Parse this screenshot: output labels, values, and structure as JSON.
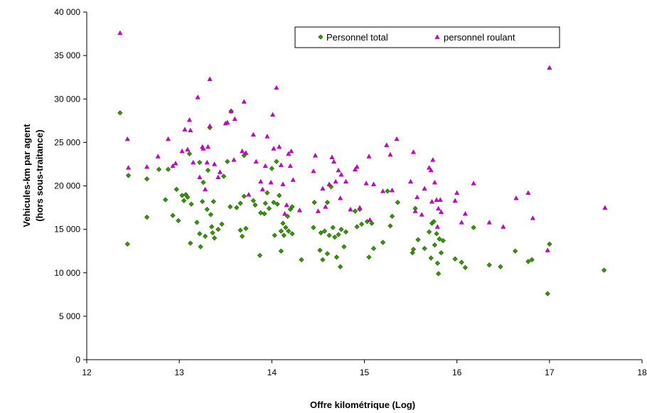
{
  "chart_data": {
    "type": "scatter",
    "title": "",
    "xlabel": "Offre kilométrique (Log)",
    "ylabel_line1": "Vehicules-km par agent",
    "ylabel_line2": "(hors sous-traitance)",
    "xlim": [
      12,
      18
    ],
    "ylim": [
      0,
      40000
    ],
    "x_ticks": [
      12,
      13,
      14,
      15,
      16,
      17,
      18
    ],
    "x_tick_labels": [
      "12",
      "13",
      "14",
      "15",
      "16",
      "17",
      "18"
    ],
    "y_ticks": [
      0,
      5000,
      10000,
      15000,
      20000,
      25000,
      30000,
      35000,
      40000
    ],
    "y_tick_labels": [
      "0",
      "5 000",
      "10 000",
      "15 000",
      "20 000",
      "25 000",
      "30 000",
      "35 000",
      "40 000"
    ],
    "grid": false,
    "legend_position": "top-right",
    "series": [
      {
        "name": "Personnel total",
        "color": "#339900",
        "marker": "diamond",
        "points": [
          [
            12.36,
            28400
          ],
          [
            12.45,
            21200
          ],
          [
            12.44,
            13300
          ],
          [
            12.65,
            20800
          ],
          [
            12.65,
            16400
          ],
          [
            12.78,
            21900
          ],
          [
            12.85,
            18400
          ],
          [
            12.88,
            21900
          ],
          [
            12.93,
            16600
          ],
          [
            12.97,
            19600
          ],
          [
            12.99,
            16000
          ],
          [
            13.03,
            18900
          ],
          [
            13.05,
            18300
          ],
          [
            13.07,
            19000
          ],
          [
            13.09,
            18700
          ],
          [
            13.11,
            23700
          ],
          [
            13.12,
            13400
          ],
          [
            13.13,
            17900
          ],
          [
            13.19,
            15800
          ],
          [
            13.22,
            22700
          ],
          [
            13.22,
            14500
          ],
          [
            13.23,
            13000
          ],
          [
            13.25,
            18200
          ],
          [
            13.26,
            20400
          ],
          [
            13.28,
            14200
          ],
          [
            13.3,
            17300
          ],
          [
            13.31,
            21800
          ],
          [
            13.33,
            26700
          ],
          [
            13.34,
            16700
          ],
          [
            13.35,
            15300
          ],
          [
            13.36,
            14600
          ],
          [
            13.37,
            18200
          ],
          [
            13.38,
            14000
          ],
          [
            13.42,
            15000
          ],
          [
            13.46,
            15600
          ],
          [
            13.48,
            21100
          ],
          [
            13.52,
            22800
          ],
          [
            13.55,
            17600
          ],
          [
            13.56,
            28600
          ],
          [
            13.62,
            17500
          ],
          [
            13.66,
            18000
          ],
          [
            13.66,
            14900
          ],
          [
            13.68,
            14200
          ],
          [
            13.7,
            18800
          ],
          [
            13.7,
            23500
          ],
          [
            13.72,
            15100
          ],
          [
            13.8,
            18300
          ],
          [
            13.82,
            17800
          ],
          [
            13.87,
            12000
          ],
          [
            13.88,
            16900
          ],
          [
            13.92,
            16800
          ],
          [
            13.93,
            18000
          ],
          [
            13.95,
            19200
          ],
          [
            13.97,
            17400
          ],
          [
            14.0,
            22000
          ],
          [
            14.02,
            18100
          ],
          [
            14.03,
            14300
          ],
          [
            14.05,
            22800
          ],
          [
            14.06,
            17900
          ],
          [
            14.08,
            18900
          ],
          [
            14.1,
            14800
          ],
          [
            14.1,
            12500
          ],
          [
            14.12,
            15700
          ],
          [
            14.13,
            14300
          ],
          [
            14.15,
            15200
          ],
          [
            14.17,
            16500
          ],
          [
            14.18,
            14800
          ],
          [
            14.2,
            17300
          ],
          [
            14.22,
            14500
          ],
          [
            14.22,
            17600
          ],
          [
            14.32,
            11500
          ],
          [
            14.45,
            15200
          ],
          [
            14.46,
            18100
          ],
          [
            14.52,
            12600
          ],
          [
            14.53,
            14600
          ],
          [
            14.55,
            11500
          ],
          [
            14.57,
            14800
          ],
          [
            14.6,
            12200
          ],
          [
            14.6,
            18100
          ],
          [
            14.62,
            14300
          ],
          [
            14.64,
            19900
          ],
          [
            14.66,
            15200
          ],
          [
            14.68,
            14100
          ],
          [
            14.7,
            11800
          ],
          [
            14.72,
            14400
          ],
          [
            14.74,
            10700
          ],
          [
            14.75,
            15000
          ],
          [
            14.78,
            13000
          ],
          [
            14.8,
            14700
          ],
          [
            14.9,
            17100
          ],
          [
            14.92,
            15300
          ],
          [
            14.95,
            17300
          ],
          [
            14.97,
            15600
          ],
          [
            15.03,
            15900
          ],
          [
            15.05,
            11800
          ],
          [
            15.08,
            15700
          ],
          [
            15.1,
            12800
          ],
          [
            15.2,
            13500
          ],
          [
            15.25,
            19400
          ],
          [
            15.28,
            15400
          ],
          [
            15.3,
            16500
          ],
          [
            15.36,
            18100
          ],
          [
            15.52,
            12300
          ],
          [
            15.53,
            12700
          ],
          [
            15.55,
            17400
          ],
          [
            15.58,
            13800
          ],
          [
            15.65,
            12800
          ],
          [
            15.7,
            14700
          ],
          [
            15.72,
            11700
          ],
          [
            15.73,
            15700
          ],
          [
            15.75,
            15900
          ],
          [
            15.76,
            13200
          ],
          [
            15.78,
            14500
          ],
          [
            15.79,
            11100
          ],
          [
            15.8,
            9900
          ],
          [
            15.81,
            13900
          ],
          [
            15.83,
            12300
          ],
          [
            15.85,
            13700
          ],
          [
            15.98,
            11600
          ],
          [
            16.05,
            11200
          ],
          [
            16.09,
            10600
          ],
          [
            16.18,
            15200
          ],
          [
            16.35,
            10900
          ],
          [
            16.47,
            10700
          ],
          [
            16.63,
            12500
          ],
          [
            16.77,
            11300
          ],
          [
            16.81,
            11500
          ],
          [
            16.98,
            7600
          ],
          [
            17.0,
            13300
          ],
          [
            17.59,
            10300
          ]
        ]
      },
      {
        "name": "personnel roulant",
        "color": "#cc00cc",
        "marker": "triangle",
        "points": [
          [
            12.36,
            37600
          ],
          [
            12.44,
            25400
          ],
          [
            12.45,
            22100
          ],
          [
            12.65,
            22200
          ],
          [
            12.77,
            23400
          ],
          [
            12.88,
            25400
          ],
          [
            12.93,
            22300
          ],
          [
            12.96,
            22600
          ],
          [
            13.03,
            24000
          ],
          [
            13.06,
            26500
          ],
          [
            13.09,
            24200
          ],
          [
            13.11,
            27600
          ],
          [
            13.12,
            26400
          ],
          [
            13.15,
            22700
          ],
          [
            13.2,
            30200
          ],
          [
            13.22,
            21000
          ],
          [
            13.25,
            24500
          ],
          [
            13.26,
            24300
          ],
          [
            13.28,
            19600
          ],
          [
            13.3,
            22700
          ],
          [
            13.31,
            24500
          ],
          [
            13.33,
            26900
          ],
          [
            13.33,
            32300
          ],
          [
            13.38,
            22500
          ],
          [
            13.42,
            21000
          ],
          [
            13.44,
            21600
          ],
          [
            13.5,
            27200
          ],
          [
            13.52,
            27300
          ],
          [
            13.56,
            28600
          ],
          [
            13.59,
            23000
          ],
          [
            13.6,
            27700
          ],
          [
            13.68,
            24000
          ],
          [
            13.7,
            29700
          ],
          [
            13.72,
            23800
          ],
          [
            13.75,
            19000
          ],
          [
            13.8,
            25900
          ],
          [
            13.83,
            22800
          ],
          [
            13.88,
            20500
          ],
          [
            13.9,
            19600
          ],
          [
            13.93,
            22300
          ],
          [
            13.95,
            25700
          ],
          [
            13.99,
            20400
          ],
          [
            14.01,
            28200
          ],
          [
            14.02,
            24300
          ],
          [
            14.05,
            31300
          ],
          [
            14.08,
            24500
          ],
          [
            14.1,
            22400
          ],
          [
            14.12,
            20200
          ],
          [
            14.14,
            16800
          ],
          [
            14.16,
            17800
          ],
          [
            14.18,
            23700
          ],
          [
            14.2,
            22300
          ],
          [
            14.21,
            24000
          ],
          [
            14.23,
            20700
          ],
          [
            14.3,
            17200
          ],
          [
            14.45,
            21700
          ],
          [
            14.47,
            23500
          ],
          [
            14.5,
            17100
          ],
          [
            14.55,
            19700
          ],
          [
            14.58,
            17600
          ],
          [
            14.62,
            20200
          ],
          [
            14.65,
            23300
          ],
          [
            14.67,
            22800
          ],
          [
            14.69,
            20500
          ],
          [
            14.72,
            21800
          ],
          [
            14.74,
            18600
          ],
          [
            14.75,
            21300
          ],
          [
            14.8,
            20500
          ],
          [
            14.85,
            17300
          ],
          [
            14.9,
            21900
          ],
          [
            14.92,
            22200
          ],
          [
            14.95,
            17500
          ],
          [
            15.02,
            20300
          ],
          [
            15.05,
            23400
          ],
          [
            15.06,
            16100
          ],
          [
            15.1,
            20200
          ],
          [
            15.2,
            19400
          ],
          [
            15.24,
            24700
          ],
          [
            15.28,
            23600
          ],
          [
            15.3,
            19500
          ],
          [
            15.35,
            25400
          ],
          [
            15.5,
            20500
          ],
          [
            15.53,
            23900
          ],
          [
            15.55,
            17100
          ],
          [
            15.57,
            18700
          ],
          [
            15.62,
            16700
          ],
          [
            15.65,
            19700
          ],
          [
            15.7,
            22100
          ],
          [
            15.72,
            21800
          ],
          [
            15.73,
            18200
          ],
          [
            15.74,
            23000
          ],
          [
            15.76,
            20400
          ],
          [
            15.78,
            18400
          ],
          [
            15.79,
            15300
          ],
          [
            15.8,
            17400
          ],
          [
            15.82,
            18400
          ],
          [
            15.83,
            17000
          ],
          [
            15.98,
            18300
          ],
          [
            16.0,
            19200
          ],
          [
            16.05,
            15800
          ],
          [
            16.09,
            16800
          ],
          [
            16.18,
            20300
          ],
          [
            16.35,
            15800
          ],
          [
            16.5,
            15300
          ],
          [
            16.64,
            18600
          ],
          [
            16.77,
            19200
          ],
          [
            16.82,
            16300
          ],
          [
            16.98,
            12600
          ],
          [
            17.0,
            33600
          ],
          [
            17.6,
            17500
          ]
        ]
      }
    ]
  }
}
